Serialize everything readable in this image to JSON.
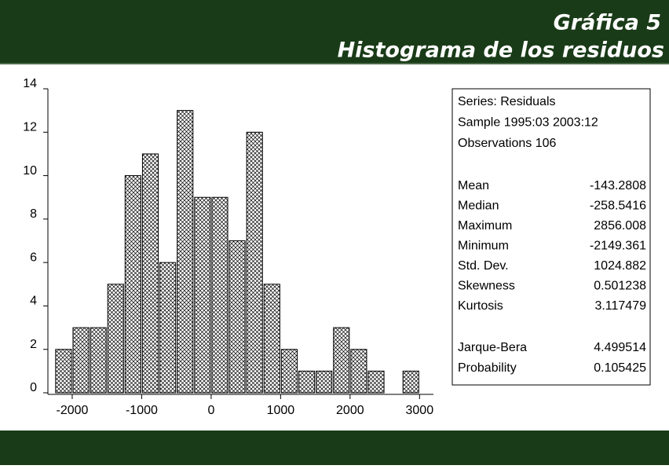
{
  "header": {
    "title": "Gráfica 5",
    "subtitle": "Histograma de los residuos"
  },
  "chart_data": {
    "type": "histogram",
    "bins": [
      -2250,
      -2000,
      -1750,
      -1500,
      -1250,
      -1000,
      -750,
      -500,
      -250,
      0,
      250,
      500,
      750,
      1000,
      1250,
      1500,
      1750,
      2000,
      2250,
      2500,
      2750,
      3000
    ],
    "values": [
      2,
      3,
      3,
      5,
      10,
      11,
      6,
      13,
      9,
      9,
      7,
      12,
      5,
      2,
      1,
      1,
      3,
      2,
      1,
      0,
      1
    ],
    "xlim": [
      -2350,
      3200
    ],
    "xticks": [
      -2000,
      -1000,
      0,
      1000,
      2000,
      3000
    ],
    "ylim": [
      0,
      14
    ],
    "yticks": [
      0,
      2,
      4,
      6,
      8,
      10,
      12,
      14
    ]
  },
  "stats": {
    "header": [
      "Series: Residuals",
      "Sample 1995:03 2003:12",
      "Observations 106"
    ],
    "rows": [
      [
        "Mean",
        "-143.2808"
      ],
      [
        "Median",
        "-258.5416"
      ],
      [
        "Maximum",
        "2856.008"
      ],
      [
        "Minimum",
        "-2149.361"
      ],
      [
        "Std.  Dev.",
        "1024.882"
      ],
      [
        "Skewness",
        "0.501238"
      ],
      [
        "Kurtosis",
        "3.117479"
      ]
    ],
    "tests": [
      [
        "Jarque-Bera",
        "4.499514"
      ],
      [
        "Probability",
        "0.105425"
      ]
    ]
  }
}
